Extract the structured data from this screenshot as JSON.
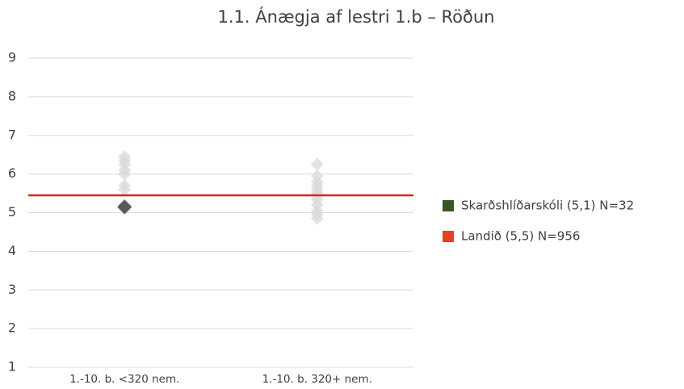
{
  "chart_data": {
    "type": "strip",
    "title": "1.1. Ánægja af lestri 1.b – Röðun",
    "categories": [
      "1.-10. b. <320 nem.",
      "1.-10. b. 320+ nem."
    ],
    "ylim": [
      1,
      9
    ],
    "yticks": [
      1,
      2,
      3,
      4,
      5,
      6,
      7,
      8,
      9
    ],
    "grid": true,
    "legend": "right",
    "others": {
      "color": "#d9d9d9",
      "values": [
        [
          6.45,
          6.35,
          6.25,
          6.1,
          6.0,
          5.7,
          5.6,
          5.2,
          5.1
        ],
        [
          6.25,
          5.95,
          5.8,
          5.7,
          5.6,
          5.5,
          5.35,
          5.2,
          5.05,
          4.95,
          4.85
        ]
      ]
    },
    "series": [
      {
        "name": "Skarðshlíðarskóli (5,1) N=32",
        "color": "#375623",
        "marker_color": "#595959",
        "values": [
          5.15,
          null
        ]
      },
      {
        "name": "Landið (5,5) N=956",
        "color": "#e8401c",
        "line_color": "#d9261c",
        "value": 5.45
      }
    ]
  }
}
